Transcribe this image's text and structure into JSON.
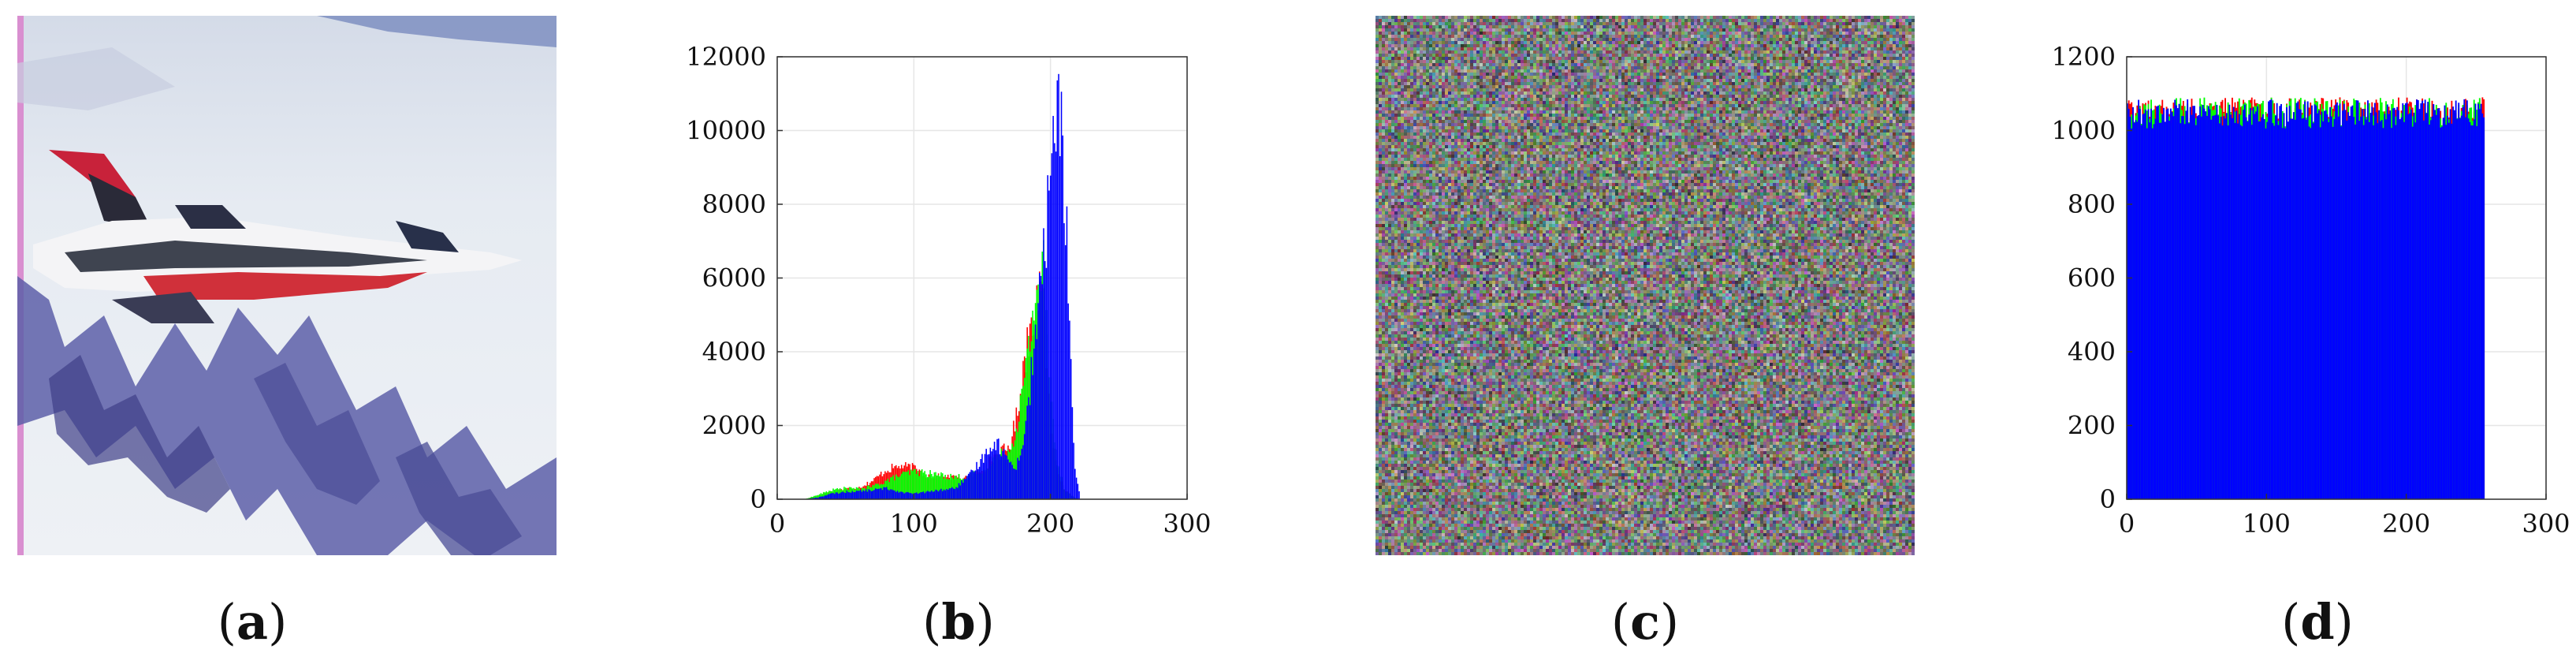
{
  "panels": {
    "a": {
      "caption_open": "(",
      "caption_letter": "a",
      "caption_close": ")"
    },
    "b": {
      "caption_open": "(",
      "caption_letter": "b",
      "caption_close": ")"
    },
    "c": {
      "caption_open": "(",
      "caption_letter": "c",
      "caption_close": ")"
    },
    "d": {
      "caption_open": "(",
      "caption_letter": "d",
      "caption_close": ")"
    }
  },
  "colors": {
    "red": "#ff0000",
    "green": "#00ff00",
    "blue": "#0000ff",
    "grid": "#e6e6e6"
  },
  "chart_data": [
    {
      "id": "b",
      "type": "bar",
      "title": "",
      "xlabel": "",
      "ylabel": "",
      "xlim": [
        0,
        300
      ],
      "ylim": [
        0,
        12000
      ],
      "xticks": [
        0,
        100,
        200,
        300
      ],
      "yticks": [
        0,
        2000,
        4000,
        6000,
        8000,
        10000,
        12000
      ],
      "grid": true,
      "series": [
        {
          "color": "red",
          "x": [
            20,
            30,
            40,
            50,
            60,
            70,
            80,
            90,
            100,
            110,
            120,
            130,
            140,
            150,
            160,
            170,
            175,
            180,
            185,
            190,
            195,
            200,
            205,
            210,
            215,
            220
          ],
          "values": [
            0,
            100,
            220,
            280,
            320,
            500,
            800,
            900,
            850,
            650,
            600,
            580,
            600,
            800,
            1200,
            1400,
            2200,
            3500,
            4700,
            5500,
            5200,
            2000,
            800,
            300,
            100,
            0
          ]
        },
        {
          "color": "green",
          "x": [
            20,
            30,
            40,
            50,
            60,
            70,
            80,
            90,
            100,
            110,
            120,
            130,
            140,
            150,
            160,
            170,
            175,
            180,
            185,
            190,
            195,
            200,
            205,
            210,
            215,
            220
          ],
          "values": [
            0,
            120,
            250,
            300,
            280,
            350,
            500,
            650,
            750,
            700,
            650,
            600,
            620,
            780,
            1150,
            1300,
            1900,
            3000,
            4300,
            5800,
            6300,
            3000,
            1000,
            300,
            100,
            0
          ]
        },
        {
          "color": "blue",
          "x": [
            20,
            30,
            40,
            50,
            60,
            70,
            80,
            90,
            100,
            110,
            120,
            130,
            140,
            150,
            155,
            160,
            165,
            170,
            175,
            180,
            185,
            190,
            195,
            200,
            203,
            206,
            209,
            212,
            215,
            218,
            222
          ],
          "values": [
            0,
            50,
            150,
            200,
            220,
            250,
            300,
            200,
            150,
            200,
            250,
            300,
            600,
            1100,
            1400,
            1550,
            1300,
            1000,
            900,
            1500,
            3000,
            4800,
            6500,
            8600,
            10300,
            10500,
            9500,
            7000,
            3500,
            800,
            0
          ]
        }
      ]
    },
    {
      "id": "d",
      "type": "bar",
      "title": "",
      "xlabel": "",
      "ylabel": "",
      "xlim": [
        0,
        300
      ],
      "ylim": [
        0,
        1200
      ],
      "xticks": [
        0,
        100,
        200,
        300
      ],
      "yticks": [
        0,
        200,
        400,
        600,
        800,
        1000,
        1200
      ],
      "grid": true,
      "series": [
        {
          "color": "red",
          "x_range": [
            0,
            255
          ],
          "mean": 1050,
          "spread": 40
        },
        {
          "color": "green",
          "x_range": [
            0,
            255
          ],
          "mean": 1050,
          "spread": 40
        },
        {
          "color": "blue",
          "x_range": [
            0,
            255
          ],
          "mean": 1045,
          "spread": 40
        }
      ]
    }
  ]
}
